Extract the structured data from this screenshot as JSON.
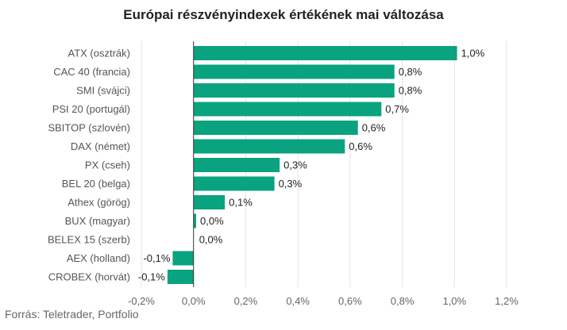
{
  "chart_data": {
    "type": "bar",
    "orientation": "horizontal",
    "title": "Európai részvényindexek értékének mai változása",
    "categories": [
      "ATX (osztrák)",
      "CAC 40 (francia)",
      "SMI (svájci)",
      "PSI 20 (portugál)",
      "SBITOP (szlovén)",
      "DAX (német)",
      "PX (cseh)",
      "BEL 20 (belga)",
      "Athex (görög)",
      "BUX (magyar)",
      "BELEX 15 (szerb)",
      "AEX (holland)",
      "CROBEX (horvát)"
    ],
    "values": [
      1.01,
      0.77,
      0.77,
      0.72,
      0.63,
      0.58,
      0.33,
      0.31,
      0.12,
      0.01,
      0.0,
      -0.08,
      -0.1
    ],
    "value_labels": [
      "1,0%",
      "0,8%",
      "0,8%",
      "0,7%",
      "0,6%",
      "0,6%",
      "0,3%",
      "0,3%",
      "0,1%",
      "0,0%",
      "0,0%",
      "-0,1%",
      "-0,1%"
    ],
    "xlim": [
      -0.2,
      1.2
    ],
    "x_ticks": [
      -0.2,
      0,
      0.2,
      0.4,
      0.6,
      0.8,
      1.0,
      1.2
    ],
    "x_tick_labels": [
      "-0,2%",
      "0,0%",
      "0,2%",
      "0,4%",
      "0,6%",
      "0,8%",
      "1,0%",
      "1,2%"
    ],
    "grid": true,
    "bar_color": "#0aa37f"
  },
  "source": "Forrás: Teletrader, Portfolio"
}
